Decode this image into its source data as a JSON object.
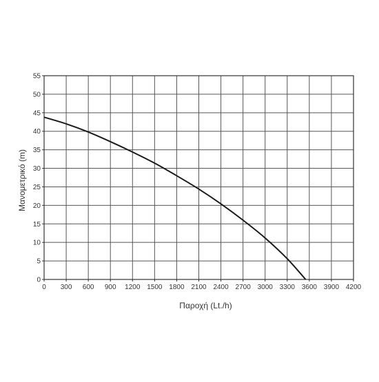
{
  "chart_data": {
    "type": "line",
    "xlabel": "Παροχή (Lt./h)",
    "ylabel": "Μανομετρικό  (m)",
    "xlim": [
      0,
      4200
    ],
    "ylim": [
      0,
      55
    ],
    "x_ticks": [
      0,
      300,
      600,
      900,
      1200,
      1500,
      1800,
      2100,
      2400,
      2700,
      3000,
      3300,
      3600,
      3900,
      4200
    ],
    "y_ticks": [
      0,
      5,
      10,
      15,
      20,
      25,
      30,
      35,
      40,
      45,
      50,
      55
    ],
    "grid": true,
    "series": [
      {
        "x": [
          0,
          300,
          600,
          900,
          1200,
          1500,
          1800,
          2100,
          2400,
          2700,
          3000,
          3300,
          3550
        ],
        "y": [
          43.8,
          42.0,
          39.8,
          37.2,
          34.4,
          31.4,
          28.0,
          24.4,
          20.4,
          16.0,
          11.2,
          5.6,
          0
        ]
      }
    ],
    "colors": {
      "line": "#1a1a1a",
      "grid": "#555555",
      "axis": "#333333"
    }
  }
}
